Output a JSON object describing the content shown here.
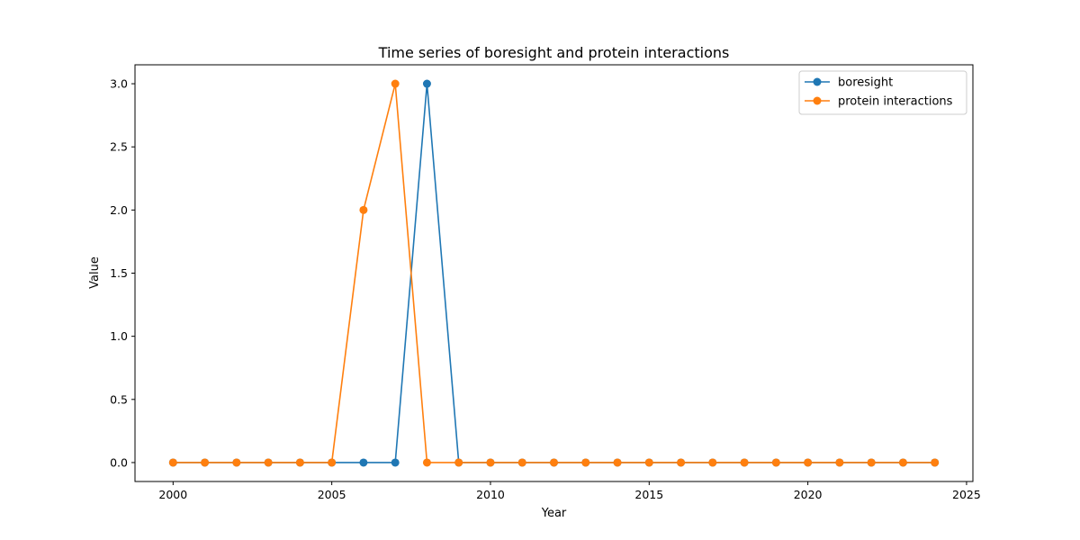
{
  "chart_data": {
    "type": "line",
    "title": "Time series of boresight and protein interactions",
    "xlabel": "Year",
    "ylabel": "Value",
    "xlim": [
      1998.8,
      2025.2
    ],
    "ylim": [
      -0.15,
      3.15
    ],
    "xticks": [
      2000,
      2005,
      2010,
      2015,
      2020,
      2025
    ],
    "yticks": [
      0.0,
      0.5,
      1.0,
      1.5,
      2.0,
      2.5,
      3.0
    ],
    "legend_position": "upper right",
    "grid": false,
    "x": [
      2000,
      2001,
      2002,
      2003,
      2004,
      2005,
      2006,
      2007,
      2008,
      2009,
      2010,
      2011,
      2012,
      2013,
      2014,
      2015,
      2016,
      2017,
      2018,
      2019,
      2020,
      2021,
      2022,
      2023,
      2024
    ],
    "series": [
      {
        "name": "boresight",
        "color": "#1f77b4",
        "values": [
          0,
          0,
          0,
          0,
          0,
          0,
          0,
          0,
          3,
          0,
          0,
          0,
          0,
          0,
          0,
          0,
          0,
          0,
          0,
          0,
          0,
          0,
          0,
          0,
          0
        ]
      },
      {
        "name": "protein interactions",
        "color": "#ff7f0e",
        "values": [
          0,
          0,
          0,
          0,
          0,
          0,
          2,
          3,
          0,
          0,
          0,
          0,
          0,
          0,
          0,
          0,
          0,
          0,
          0,
          0,
          0,
          0,
          0,
          0,
          0
        ]
      }
    ]
  }
}
